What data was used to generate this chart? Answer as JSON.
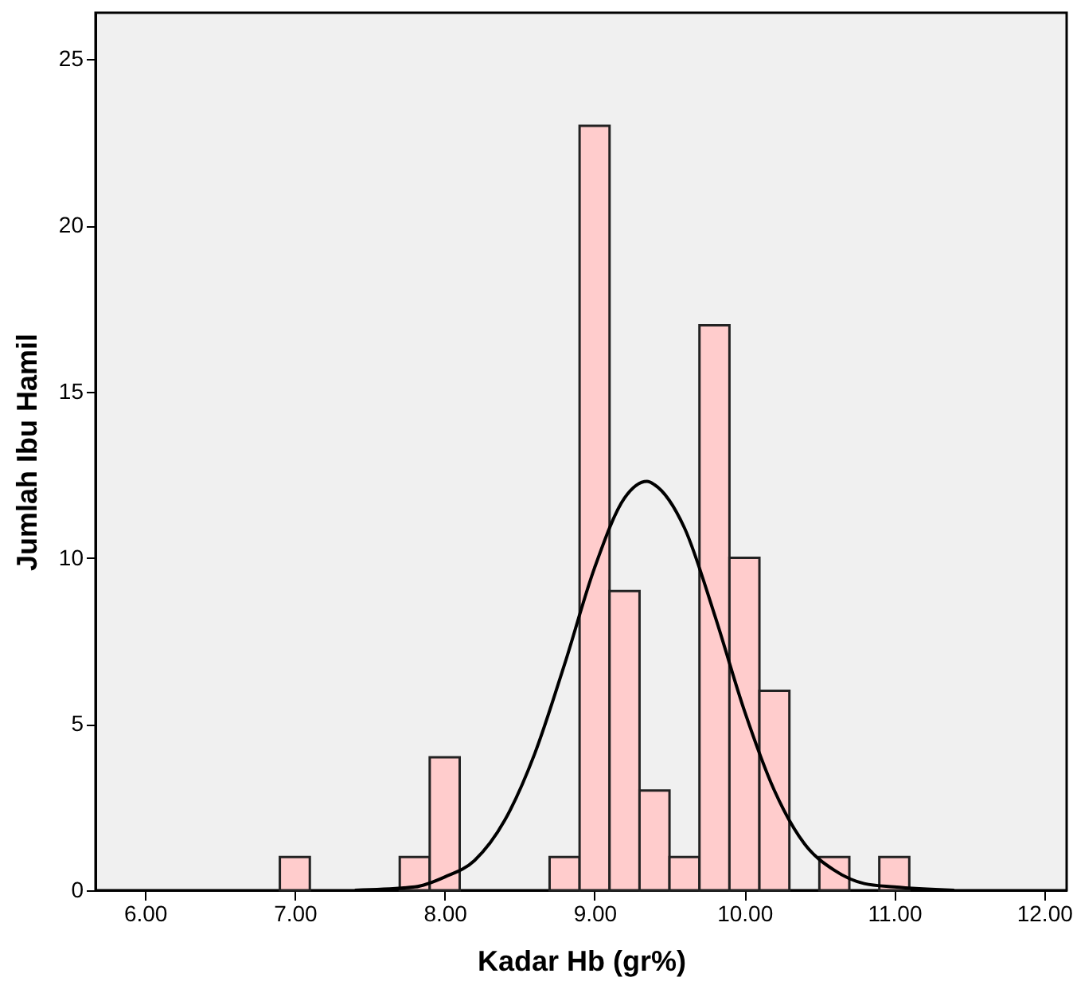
{
  "chart_data": {
    "type": "histogram",
    "xlabel": "Kadar Hb (gr%)",
    "ylabel": "Jumlah Ibu Hamil",
    "bins": [
      6.9,
      7.1,
      7.3,
      7.5,
      7.7,
      7.9,
      8.1,
      8.3,
      8.5,
      8.7,
      8.9,
      9.1,
      9.3,
      9.5,
      9.7,
      9.9,
      10.1,
      10.3,
      10.5,
      10.7,
      10.9,
      11.1
    ],
    "values": [
      1,
      0,
      0,
      0,
      1,
      4,
      0,
      0,
      0,
      1,
      23,
      9,
      3,
      1,
      17,
      10,
      6,
      0,
      1,
      0,
      1
    ],
    "color": "#ffcccc",
    "series": [
      {
        "type": "line",
        "color": "#000000",
        "x": [
          7.4,
          7.8,
          8.0,
          8.2,
          8.4,
          8.6,
          8.8,
          9.0,
          9.2,
          9.35,
          9.4,
          9.6,
          9.8,
          10.0,
          10.2,
          10.4,
          10.6,
          10.8,
          11.0,
          11.4
        ],
        "values": [
          0.0,
          0.1,
          0.4,
          0.9,
          2.1,
          4.1,
          6.8,
          9.7,
          11.8,
          12.3,
          12.2,
          10.9,
          8.3,
          5.4,
          3.0,
          1.4,
          0.6,
          0.2,
          0.1,
          0.0
        ]
      }
    ],
    "xlim": [
      5.67,
      12.15
    ],
    "xticks": [
      {
        "value": 6,
        "label": "6.00"
      },
      {
        "value": 7,
        "label": "7.00"
      },
      {
        "value": 8,
        "label": "8.00"
      },
      {
        "value": 9,
        "label": "9.00"
      },
      {
        "value": 10,
        "label": "10.00"
      },
      {
        "value": 11,
        "label": "11.00"
      },
      {
        "value": 12,
        "label": "12.00"
      }
    ],
    "ylim": [
      0,
      26.4
    ],
    "yticks": [
      0,
      5,
      10,
      15,
      20,
      25
    ],
    "grid": false
  }
}
